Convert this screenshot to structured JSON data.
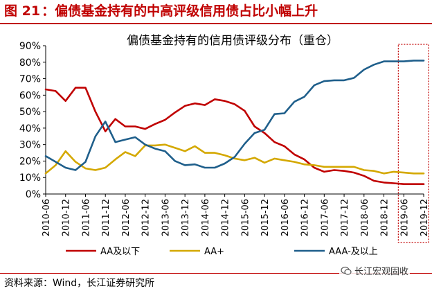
{
  "figure": {
    "number_label": "图 21",
    "separator": "：",
    "headline": "偏债基金持有的中高评级信用债占比小幅上升",
    "source": "资料来源：Wind，长江证券研究所",
    "watermark": "长江宏观固收"
  },
  "colors": {
    "brand_red": "#c00000",
    "highlight_box": "#c00000"
  },
  "chart_data": {
    "type": "line",
    "title": "偏债基金持有的信用债评级分布（重仓）",
    "xlabel": "",
    "ylabel": "",
    "ylim": [
      0,
      90
    ],
    "yticks": [
      "0%",
      "10%",
      "20%",
      "30%",
      "40%",
      "50%",
      "60%",
      "70%",
      "80%",
      "90%"
    ],
    "grid": false,
    "legend_position": "bottom",
    "x": [
      "2010-06",
      "2010-09",
      "2010-12",
      "2011-03",
      "2011-06",
      "2011-09",
      "2011-12",
      "2012-03",
      "2012-06",
      "2012-09",
      "2012-12",
      "2013-03",
      "2013-06",
      "2013-09",
      "2013-12",
      "2014-03",
      "2014-06",
      "2014-09",
      "2014-12",
      "2015-03",
      "2015-06",
      "2015-09",
      "2015-12",
      "2016-03",
      "2016-06",
      "2016-09",
      "2016-12",
      "2017-03",
      "2017-06",
      "2017-09",
      "2017-12",
      "2018-03",
      "2018-06",
      "2018-09",
      "2018-12",
      "2019-03",
      "2019-06",
      "2019-09",
      "2019-12"
    ],
    "xtick_labels": [
      "2010-06",
      "2010-12",
      "2011-06",
      "2011-12",
      "2012-06",
      "2012-12",
      "2013-06",
      "2013-12",
      "2014-06",
      "2014-12",
      "2015-06",
      "2015-12",
      "2016-06",
      "2016-12",
      "2017-06",
      "2017-12",
      "2018-06",
      "2018-12",
      "2019-06",
      "2019-12"
    ],
    "series": [
      {
        "name": "AA及以下",
        "color": "#c00000",
        "values": [
          63.5,
          62.5,
          56.5,
          64.5,
          64.5,
          50,
          38,
          45.5,
          41,
          41,
          39.5,
          42.5,
          45,
          49.5,
          53.5,
          55,
          54,
          57.5,
          56.5,
          54.5,
          50.5,
          41,
          37,
          31.5,
          29,
          24,
          21,
          16,
          13.5,
          14.5,
          14,
          13,
          11,
          8,
          7,
          6.5,
          6,
          6,
          6
        ]
      },
      {
        "name": "AA+",
        "color": "#d4a800",
        "values": [
          12.5,
          17.5,
          26,
          19.5,
          15.5,
          14.5,
          16,
          21,
          25.5,
          23,
          29.5,
          29.5,
          30,
          28,
          26,
          29,
          25,
          25,
          23.5,
          21.5,
          20.5,
          22,
          19,
          21.5,
          20.5,
          19.5,
          18,
          17.5,
          16.5,
          16.5,
          16.5,
          16.5,
          14.5,
          14,
          12.5,
          13.5,
          13,
          12.5,
          12.5
        ]
      },
      {
        "name": "AAA-及以上",
        "color": "#1f5f8b",
        "values": [
          23,
          19.5,
          16,
          14.5,
          19.5,
          35,
          44,
          31.5,
          33,
          34.5,
          30,
          27.5,
          26,
          20,
          17.5,
          18,
          16,
          16,
          18.5,
          22.5,
          30.5,
          37,
          39,
          48.5,
          49,
          56,
          59,
          66,
          68.5,
          69,
          69,
          70.5,
          75.5,
          78.5,
          80.5,
          80.5,
          80.5,
          81,
          81
        ]
      }
    ],
    "highlight": {
      "x_from": "2019-06",
      "x_to": "2019-12",
      "style": "dotted"
    }
  }
}
